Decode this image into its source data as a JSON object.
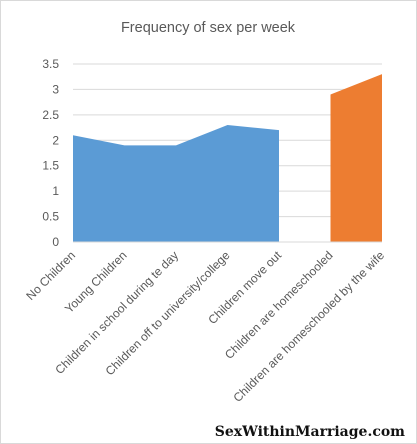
{
  "watermark": "SexWithinMarriage.com",
  "chart_data": {
    "type": "area",
    "title": "Frequency of sex per week",
    "xlabel": "",
    "ylabel": "",
    "categories": [
      "No Children",
      "Young Children",
      "Children in school during te day",
      "Children off to university/college",
      "Children move out",
      "Children are homeschooled",
      "Children are homeschooled by the wife"
    ],
    "y_ticks": [
      "0",
      "0.5",
      "1",
      "1.5",
      "2",
      "2.5",
      "3",
      "3.5"
    ],
    "ylim": [
      0,
      3.5
    ],
    "grid": true,
    "legend": "none",
    "series": [
      {
        "color": "#5b9bd5",
        "values": [
          2.1,
          1.9,
          1.9,
          2.3,
          2.2,
          null,
          null
        ]
      },
      {
        "color": "#ed7d31",
        "values": [
          null,
          null,
          null,
          null,
          null,
          2.9,
          3.3
        ]
      }
    ]
  }
}
